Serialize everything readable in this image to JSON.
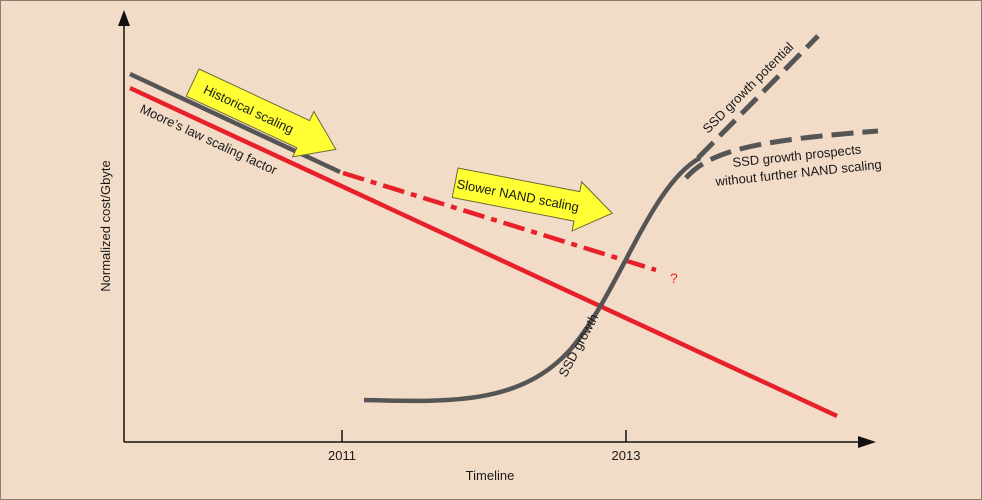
{
  "chart_data": {
    "type": "line",
    "title": "",
    "xlabel": "Timeline",
    "ylabel": "Normalized cost/Gbyte",
    "x_ticks": [
      "2011",
      "2013"
    ],
    "series": [
      {
        "name": "Moore's law scaling factor",
        "color": "#e8202a",
        "style": "solid"
      },
      {
        "name": "Historical scaling",
        "color": "#555555",
        "style": "solid"
      },
      {
        "name": "Slower NAND scaling",
        "color": "#e8202a",
        "style": "dash-dot"
      },
      {
        "name": "SSD growth",
        "color": "#555555",
        "style": "solid"
      },
      {
        "name": "SSD growth potential",
        "color": "#555555",
        "style": "dashed"
      },
      {
        "name": "SSD growth prospects without further NAND scaling",
        "color": "#555555",
        "style": "dashed"
      }
    ],
    "annotations": {
      "question_mark": "?",
      "historical_arrow": "Historical scaling",
      "slower_arrow": "Slower NAND scaling"
    },
    "labels": {
      "moores_law": "Moore’s law scaling factor",
      "ssd_growth": "SSD growth",
      "ssd_potential": "SSD growth potential",
      "ssd_prospects_line1": "SSD growth prospects",
      "ssd_prospects_line2": "without further NAND scaling"
    },
    "colors": {
      "red": "#e8202a",
      "gray": "#555555",
      "arrow_fill": "#ffff33",
      "background": "#f2dcc8"
    }
  }
}
